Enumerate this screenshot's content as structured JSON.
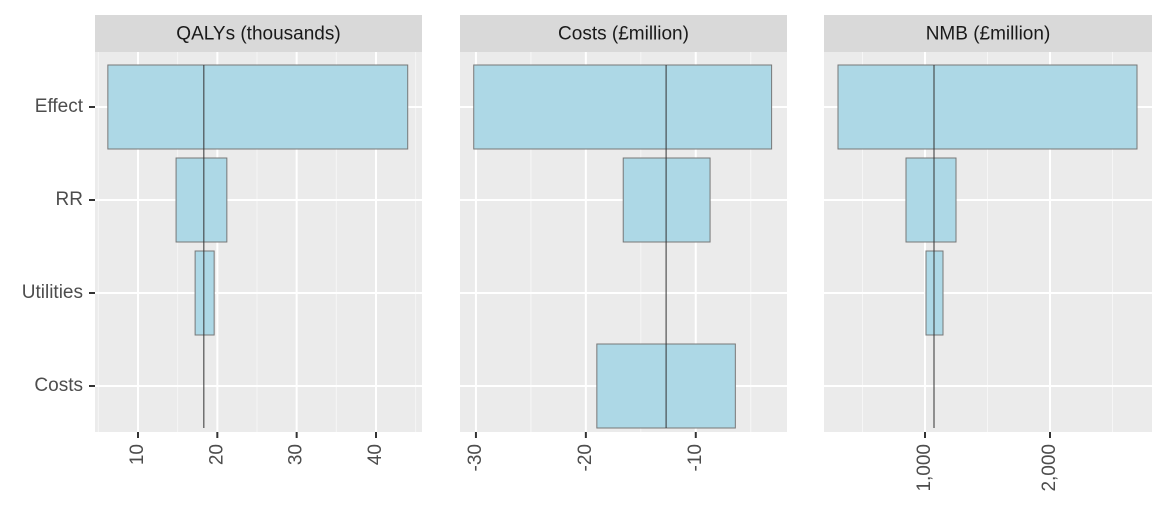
{
  "chart_data": {
    "type": "tornado",
    "categories": [
      "Effect",
      "RR",
      "Utilities",
      "Costs"
    ],
    "panels": [
      {
        "title": "QALYs (thousands)",
        "base": 18.3,
        "low": [
          6.2,
          14.8,
          17.2,
          18.3
        ],
        "high": [
          44.0,
          21.2,
          19.6,
          18.3
        ],
        "xlim": [
          4.58,
          45.8
        ],
        "xticks": [
          10,
          20,
          30,
          40
        ],
        "minor_xticks": [
          5,
          15,
          25,
          35,
          45
        ]
      },
      {
        "title": "Costs (£million)",
        "base": -12.7,
        "low": [
          -30.2,
          -16.6,
          -12.7,
          -19.0
        ],
        "high": [
          -3.1,
          -8.7,
          -12.7,
          -6.4
        ],
        "xlim": [
          -31.45,
          -1.7
        ],
        "xticks": [
          -30,
          -20,
          -10
        ],
        "minor_xticks": [
          -25,
          -15,
          -5
        ]
      },
      {
        "title": "NMB (£million)",
        "base": 1072,
        "low": [
          304,
          848,
          1008,
          1072
        ],
        "high": [
          2696,
          1248,
          1144,
          1072
        ],
        "xlim": [
          192,
          2816
        ],
        "xticks": [
          {
            "value": 1000,
            "label": "1,000"
          },
          {
            "value": 2000,
            "label": "2,000"
          }
        ],
        "minor_xticks": [
          500,
          1500,
          2500
        ]
      }
    ],
    "grid": true,
    "color": "#add8e6"
  }
}
